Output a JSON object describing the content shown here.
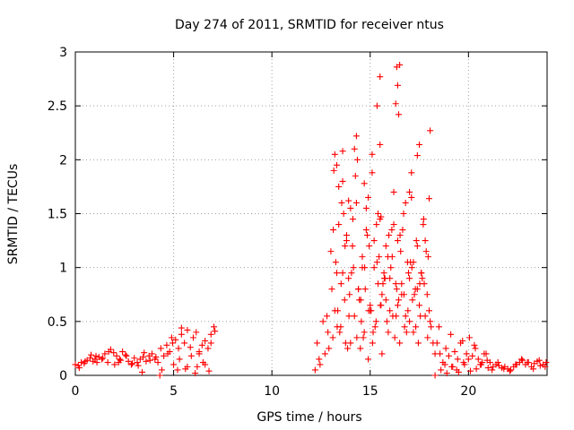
{
  "chart_data": {
    "type": "scatter",
    "title": "Day 274 of 2011, SRMTID for receiver ntus",
    "xlabel": "GPS time / hours",
    "ylabel": "SRMTID / TECUs",
    "xlim": [
      0,
      24
    ],
    "ylim": [
      0,
      3
    ],
    "xticks": [
      0,
      5,
      10,
      15,
      20
    ],
    "xtick_labels": [
      "0",
      "5",
      "10",
      "15",
      "20"
    ],
    "yticks": [
      0,
      0.5,
      1,
      1.5,
      2,
      2.5,
      3
    ],
    "ytick_labels": [
      "0",
      "0.5",
      "1",
      "1.5",
      "2",
      "2.5",
      "3"
    ],
    "grid": true,
    "marker": "plus",
    "series": [
      {
        "name": "SRMTID",
        "color": "#ff0000",
        "x": [
          0.0,
          0.15,
          0.3,
          0.45,
          0.6,
          0.75,
          0.9,
          1.05,
          1.2,
          1.35,
          1.5,
          1.65,
          1.8,
          1.95,
          2.1,
          2.25,
          2.4,
          2.55,
          2.7,
          2.85,
          3.0,
          3.15,
          3.3,
          3.45,
          3.6,
          3.75,
          3.9,
          4.05,
          4.2,
          4.35,
          4.5,
          4.65,
          4.8,
          4.95,
          5.1,
          5.25,
          5.4,
          5.55,
          5.7,
          5.85,
          6.0,
          6.15,
          6.3,
          6.45,
          6.6,
          6.75,
          6.9,
          7.05,
          0.2,
          0.5,
          0.8,
          1.1,
          1.4,
          1.7,
          2.0,
          2.3,
          2.6,
          2.9,
          3.2,
          3.5,
          3.8,
          4.1,
          4.4,
          4.7,
          5.0,
          5.3,
          5.6,
          5.9,
          6.2,
          6.5,
          6.8,
          7.1,
          4.3,
          3.4,
          2.2,
          1.0,
          5.2,
          5.7,
          6.1,
          6.6,
          4.9,
          6.9,
          5.4,
          6.3,
          12.2,
          12.3,
          12.45,
          12.6,
          12.7,
          12.85,
          13.0,
          13.1,
          13.2,
          13.3,
          13.4,
          13.5,
          13.6,
          13.7,
          13.8,
          13.9,
          14.0,
          14.1,
          14.2,
          14.3,
          14.4,
          14.5,
          14.6,
          14.7,
          14.8,
          14.9,
          15.0,
          15.1,
          15.2,
          15.3,
          15.4,
          15.5,
          15.6,
          15.7,
          15.8,
          15.9,
          16.0,
          16.1,
          16.2,
          16.3,
          16.4,
          16.5,
          16.6,
          16.7,
          16.8,
          16.9,
          17.0,
          17.1,
          17.2,
          17.3,
          17.4,
          17.5,
          17.6,
          17.7,
          17.8,
          17.9,
          18.0,
          18.1,
          18.2,
          18.3,
          12.4,
          12.8,
          13.05,
          13.25,
          13.45,
          13.65,
          13.85,
          14.05,
          14.25,
          14.45,
          14.65,
          14.85,
          15.05,
          15.25,
          15.45,
          15.65,
          15.85,
          16.05,
          16.25,
          16.45,
          16.65,
          16.85,
          17.05,
          17.25,
          17.45,
          17.65,
          17.85,
          18.05,
          13.15,
          13.35,
          13.55,
          13.75,
          13.95,
          14.15,
          14.35,
          14.55,
          14.75,
          14.95,
          15.15,
          15.35,
          15.55,
          15.75,
          15.95,
          16.15,
          16.35,
          16.55,
          16.75,
          16.95,
          17.15,
          17.35,
          17.55,
          17.75,
          17.95,
          12.9,
          13.12,
          13.32,
          13.52,
          13.72,
          13.92,
          14.12,
          14.32,
          14.52,
          14.72,
          14.92,
          15.12,
          15.32,
          15.52,
          15.72,
          15.92,
          16.12,
          16.32,
          16.52,
          16.72,
          16.92,
          17.12,
          17.32,
          17.52,
          17.72,
          17.92,
          13.2,
          13.4,
          13.6,
          13.8,
          14.0,
          14.2,
          14.4,
          14.6,
          14.8,
          15.0,
          15.2,
          15.4,
          15.6,
          15.8,
          16.0,
          16.2,
          16.4,
          16.6,
          16.8,
          17.0,
          17.2,
          17.4,
          17.6,
          17.8,
          13.3,
          13.6,
          14.3,
          14.7,
          15.1,
          15.35,
          15.5,
          15.5,
          15.55,
          16.3,
          16.35,
          16.4,
          16.45,
          16.5,
          17.1,
          17.4,
          17.5,
          18.0,
          18.05,
          13.9,
          14.9,
          17.0,
          18.4,
          18.55,
          18.7,
          18.85,
          19.0,
          19.15,
          19.3,
          19.45,
          19.6,
          19.75,
          19.9,
          20.05,
          20.2,
          20.35,
          20.5,
          20.65,
          20.8,
          20.95,
          21.1,
          21.25,
          21.4,
          21.55,
          21.7,
          21.85,
          22.0,
          22.15,
          22.3,
          22.45,
          22.6,
          22.75,
          22.9,
          23.05,
          23.2,
          23.35,
          23.5,
          23.65,
          23.8,
          23.95,
          18.5,
          18.8,
          19.1,
          19.4,
          19.7,
          20.0,
          20.3,
          20.6,
          20.9,
          21.2,
          21.5,
          21.8,
          22.1,
          22.4,
          22.7,
          23.0,
          23.3,
          23.6,
          23.9,
          18.3,
          18.6,
          18.9,
          19.2,
          19.5,
          19.8,
          20.1,
          20.4,
          20.7,
          21.0
        ],
        "y": [
          0.1,
          0.09,
          0.12,
          0.11,
          0.14,
          0.16,
          0.13,
          0.18,
          0.17,
          0.15,
          0.2,
          0.12,
          0.24,
          0.21,
          0.18,
          0.15,
          0.22,
          0.19,
          0.13,
          0.1,
          0.16,
          0.12,
          0.15,
          0.17,
          0.13,
          0.18,
          0.2,
          0.15,
          0.12,
          0.25,
          0.18,
          0.28,
          0.22,
          0.3,
          0.33,
          0.25,
          0.38,
          0.3,
          0.42,
          0.26,
          0.35,
          0.4,
          0.22,
          0.28,
          0.32,
          0.25,
          0.38,
          0.45,
          0.07,
          0.13,
          0.19,
          0.12,
          0.16,
          0.22,
          0.1,
          0.14,
          0.18,
          0.11,
          0.09,
          0.21,
          0.14,
          0.17,
          0.05,
          0.2,
          0.1,
          0.15,
          0.06,
          0.18,
          0.08,
          0.12,
          0.04,
          0.41,
          0.0,
          0.03,
          0.12,
          0.15,
          0.05,
          0.08,
          0.02,
          0.1,
          0.35,
          0.3,
          0.44,
          0.2,
          0.05,
          0.3,
          0.1,
          0.5,
          0.2,
          0.4,
          1.15,
          0.35,
          0.6,
          0.95,
          1.4,
          0.45,
          1.8,
          0.7,
          1.3,
          0.9,
          0.3,
          1.2,
          0.55,
          1.6,
          0.8,
          0.25,
          1.0,
          0.4,
          1.55,
          0.15,
          0.65,
          2.05,
          1.25,
          0.5,
          0.85,
          1.45,
          0.2,
          0.95,
          0.7,
          1.1,
          0.6,
          1.35,
          1.7,
          0.85,
          1.25,
          0.3,
          0.75,
          1.5,
          0.55,
          1.05,
          0.9,
          1.65,
          0.4,
          0.8,
          1.2,
          0.65,
          0.95,
          1.4,
          0.55,
          0.75,
          0.6,
          0.45,
          0.3,
          0.2,
          0.15,
          0.55,
          0.8,
          1.05,
          0.4,
          1.5,
          0.25,
          0.95,
          1.85,
          0.7,
          0.35,
          1.3,
          0.6,
          0.45,
          1.1,
          0.85,
          0.5,
          1.0,
          0.35,
          0.7,
          1.35,
          0.4,
          1.05,
          0.75,
          0.3,
          0.9,
          1.15,
          0.5,
          1.9,
          0.6,
          1.6,
          0.3,
          0.75,
          1.0,
          2.0,
          0.5,
          0.8,
          1.2,
          0.4,
          1.05,
          0.65,
          0.9,
          1.3,
          0.55,
          0.8,
          1.15,
          0.45,
          0.95,
          0.7,
          1.25,
          0.55,
          0.85,
          1.1,
          0.25,
          1.35,
          0.45,
          0.85,
          1.2,
          0.55,
          1.45,
          0.35,
          0.7,
          1.0,
          0.6,
          0.3,
          1.4,
          0.65,
          0.9,
          0.4,
          1.1,
          0.55,
          1.3,
          0.75,
          0.6,
          1.0,
          0.45,
          0.85,
          1.45,
          0.35,
          2.05,
          1.75,
          0.95,
          1.25,
          1.55,
          2.1,
          0.8,
          1.1,
          1.35,
          0.6,
          1.0,
          1.5,
          0.75,
          1.2,
          0.9,
          1.4,
          0.65,
          0.85,
          1.6,
          0.5,
          1.05,
          0.8,
          0.95,
          1.25,
          1.95,
          2.08,
          2.22,
          1.78,
          1.88,
          2.5,
          2.14,
          2.77,
          1.47,
          2.52,
          2.86,
          2.69,
          2.42,
          2.88,
          1.88,
          2.04,
          2.14,
          1.64,
          2.27,
          1.62,
          1.65,
          1.7,
          0.3,
          0.2,
          0.12,
          0.25,
          0.18,
          0.08,
          0.22,
          0.15,
          0.3,
          0.12,
          0.2,
          0.35,
          0.18,
          0.25,
          0.15,
          0.1,
          0.2,
          0.14,
          0.12,
          0.08,
          0.1,
          0.09,
          0.07,
          0.08,
          0.06,
          0.05,
          0.08,
          0.1,
          0.12,
          0.14,
          0.1,
          0.12,
          0.08,
          0.11,
          0.13,
          0.09,
          0.1,
          0.12,
          0.45,
          0.1,
          0.38,
          0.05,
          0.32,
          0.15,
          0.28,
          0.1,
          0.2,
          0.05,
          0.12,
          0.06,
          0.04,
          0.1,
          0.15,
          0.12,
          0.06,
          0.14,
          0.08,
          0.0,
          0.05,
          0.02,
          0.08,
          0.03,
          0.1,
          0.04,
          0.06,
          0.12,
          0.07
        ]
      }
    ]
  }
}
